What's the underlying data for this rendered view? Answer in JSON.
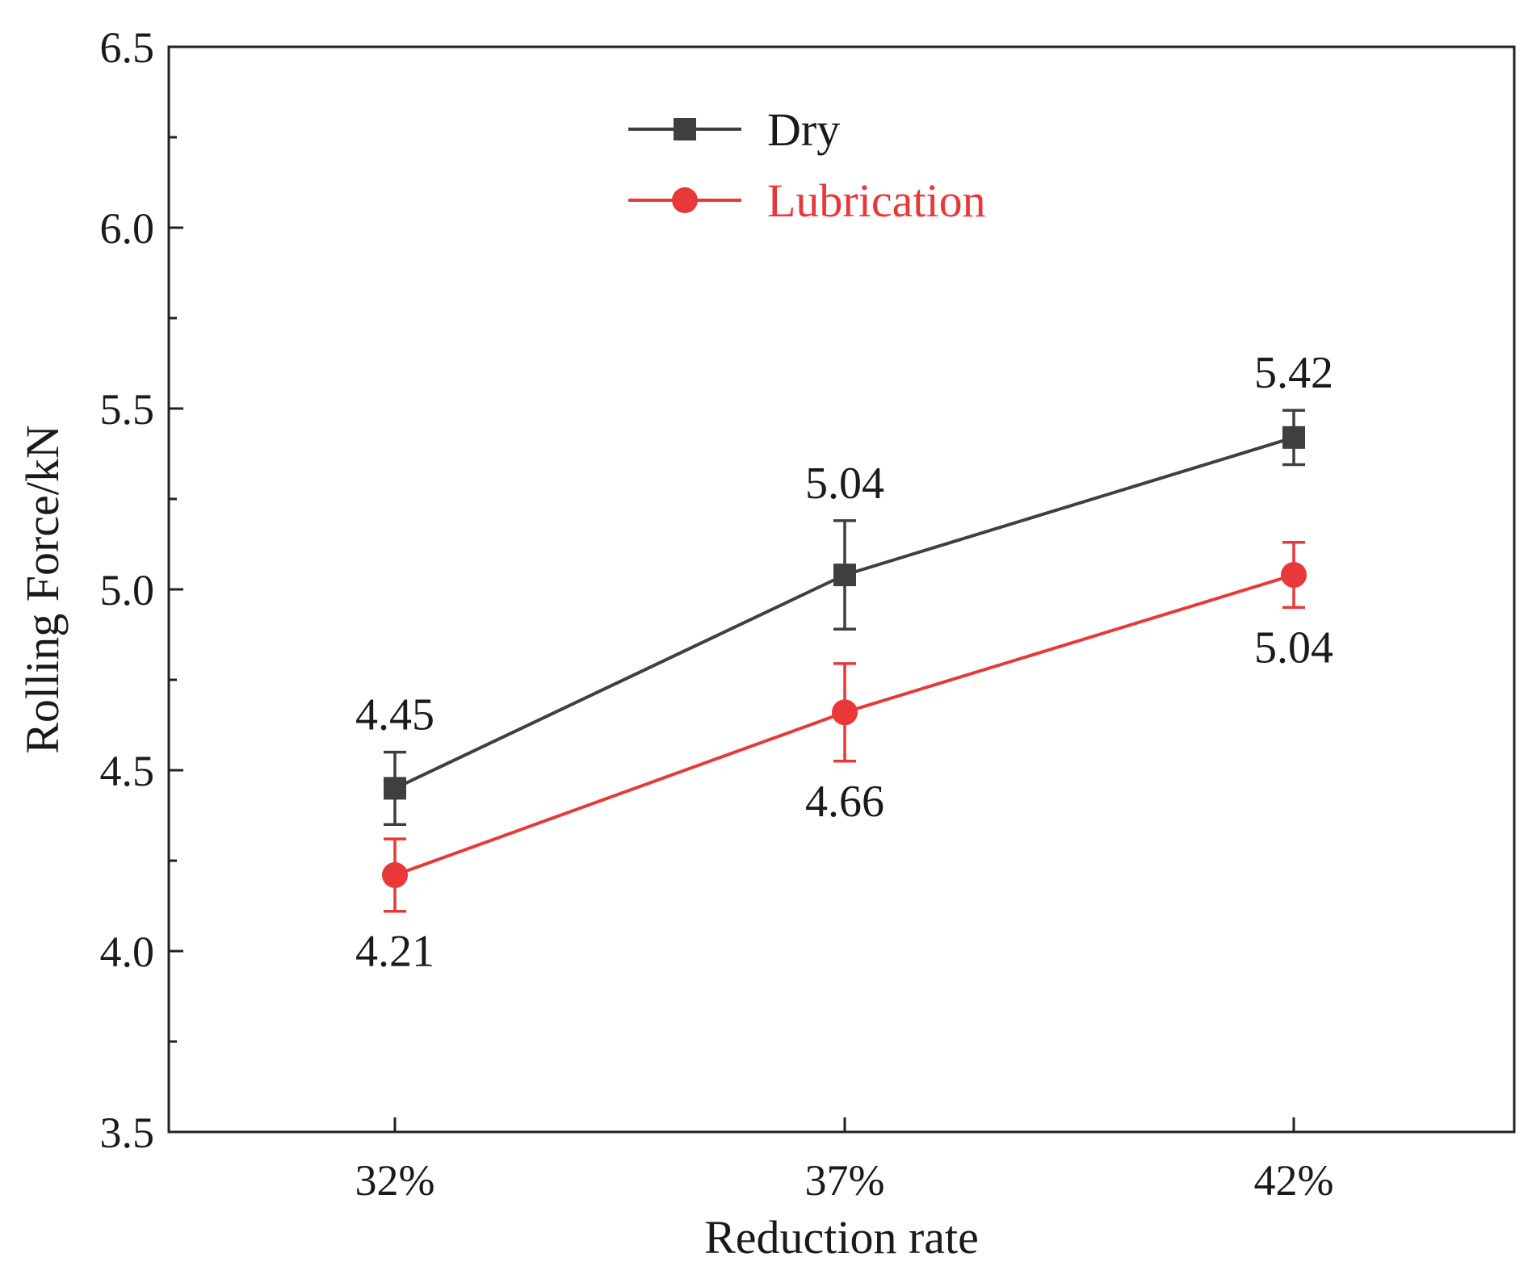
{
  "chart_data": {
    "type": "line",
    "title": "",
    "xlabel": "Reduction rate",
    "ylabel": "Rolling Force/kN",
    "categories": [
      "32%",
      "37%",
      "42%"
    ],
    "ylim": [
      3.5,
      6.5
    ],
    "yticks": [
      "3.5",
      "4.0",
      "4.5",
      "5.0",
      "5.5",
      "6.0",
      "6.5"
    ],
    "legend_position": "top-center",
    "series": [
      {
        "name": "Dry",
        "color": "#3f3f3f",
        "marker": "square",
        "values": [
          4.45,
          5.04,
          5.42
        ],
        "errors": [
          0.1,
          0.15,
          0.075
        ],
        "labels": [
          "4.45",
          "5.04",
          "5.42"
        ],
        "label_side": "above"
      },
      {
        "name": "Lubrication",
        "color": "#e8383a",
        "marker": "circle",
        "values": [
          4.21,
          4.66,
          5.04
        ],
        "errors": [
          0.1,
          0.135,
          0.09
        ],
        "labels": [
          "4.21",
          "4.66",
          "5.04"
        ],
        "label_side": "below"
      }
    ]
  }
}
